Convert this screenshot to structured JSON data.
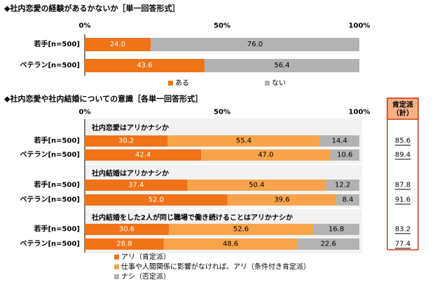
{
  "colors": {
    "orange": "#f07318",
    "light_orange": "#f7a34a",
    "gray": "#b2b2b2",
    "panel": "#f2f2f2",
    "box_border": "#d03b1a",
    "box_header": "#f4b183"
  },
  "chart_data": [
    {
      "type": "bar",
      "orientation": "horizontal",
      "stacked": true,
      "title": "◆社内恋愛の経験があるかないか［単一回答形式］",
      "ticks": [
        "0%",
        "50%",
        "100%"
      ],
      "xlim": [
        0,
        100
      ],
      "categories": [
        "若手[n=500]",
        "ベテラン[n=500]"
      ],
      "series": [
        {
          "name": "ある",
          "values": [
            24.0,
            43.6
          ],
          "labels": [
            "24.0",
            "43.6"
          ]
        },
        {
          "name": "ない",
          "values": [
            76.0,
            56.4
          ],
          "labels": [
            "76.0",
            "56.4"
          ]
        }
      ],
      "legend_position": "bottom"
    },
    {
      "type": "bar",
      "orientation": "horizontal",
      "stacked": true,
      "title": "◆社内恋愛や社内結婚についての意識［各単一回答形式］",
      "ticks": [
        "0%",
        "50%",
        "100%"
      ],
      "xlim": [
        0,
        100
      ],
      "summary_header": "肯定派",
      "summary_subheader": "（計）",
      "groups": [
        {
          "question": "社内恋愛はアリかナシか",
          "categories": [
            "若手[n=500]",
            "ベテラン[n=500]"
          ],
          "values": [
            [
              30.2,
              55.4,
              14.4
            ],
            [
              42.4,
              47.0,
              10.6
            ]
          ],
          "labels": [
            [
              "30.2",
              "55.4",
              "14.4"
            ],
            [
              "42.4",
              "47.0",
              "10.6"
            ]
          ],
          "totals": [
            "85.6",
            "89.4"
          ]
        },
        {
          "question": "社内結婚はアリかナシか",
          "categories": [
            "若手[n=500]",
            "ベテラン[n=500]"
          ],
          "values": [
            [
              37.4,
              50.4,
              12.2
            ],
            [
              52.0,
              39.6,
              8.4
            ]
          ],
          "labels": [
            [
              "37.4",
              "50.4",
              "12.2"
            ],
            [
              "52.0",
              "39.6",
              "8.4"
            ]
          ],
          "totals": [
            "87.8",
            "91.6"
          ]
        },
        {
          "question": "社内結婚をした2人が同じ職場で働き続けることはアリかナシか",
          "categories": [
            "若手[n=500]",
            "ベテラン[n=500]"
          ],
          "values": [
            [
              30.6,
              52.6,
              16.8
            ],
            [
              28.8,
              48.6,
              22.6
            ]
          ],
          "labels": [
            [
              "30.6",
              "52.6",
              "16.8"
            ],
            [
              "28.8",
              "48.6",
              "22.6"
            ]
          ],
          "totals": [
            "83.2",
            "77.4"
          ]
        }
      ],
      "series_names": [
        "アリ（肯定派）",
        "仕事や人間関係に影響がなければ、アリ（条件付き肯定派）",
        "ナシ（否定派）"
      ],
      "legend_position": "bottom-left"
    }
  ]
}
